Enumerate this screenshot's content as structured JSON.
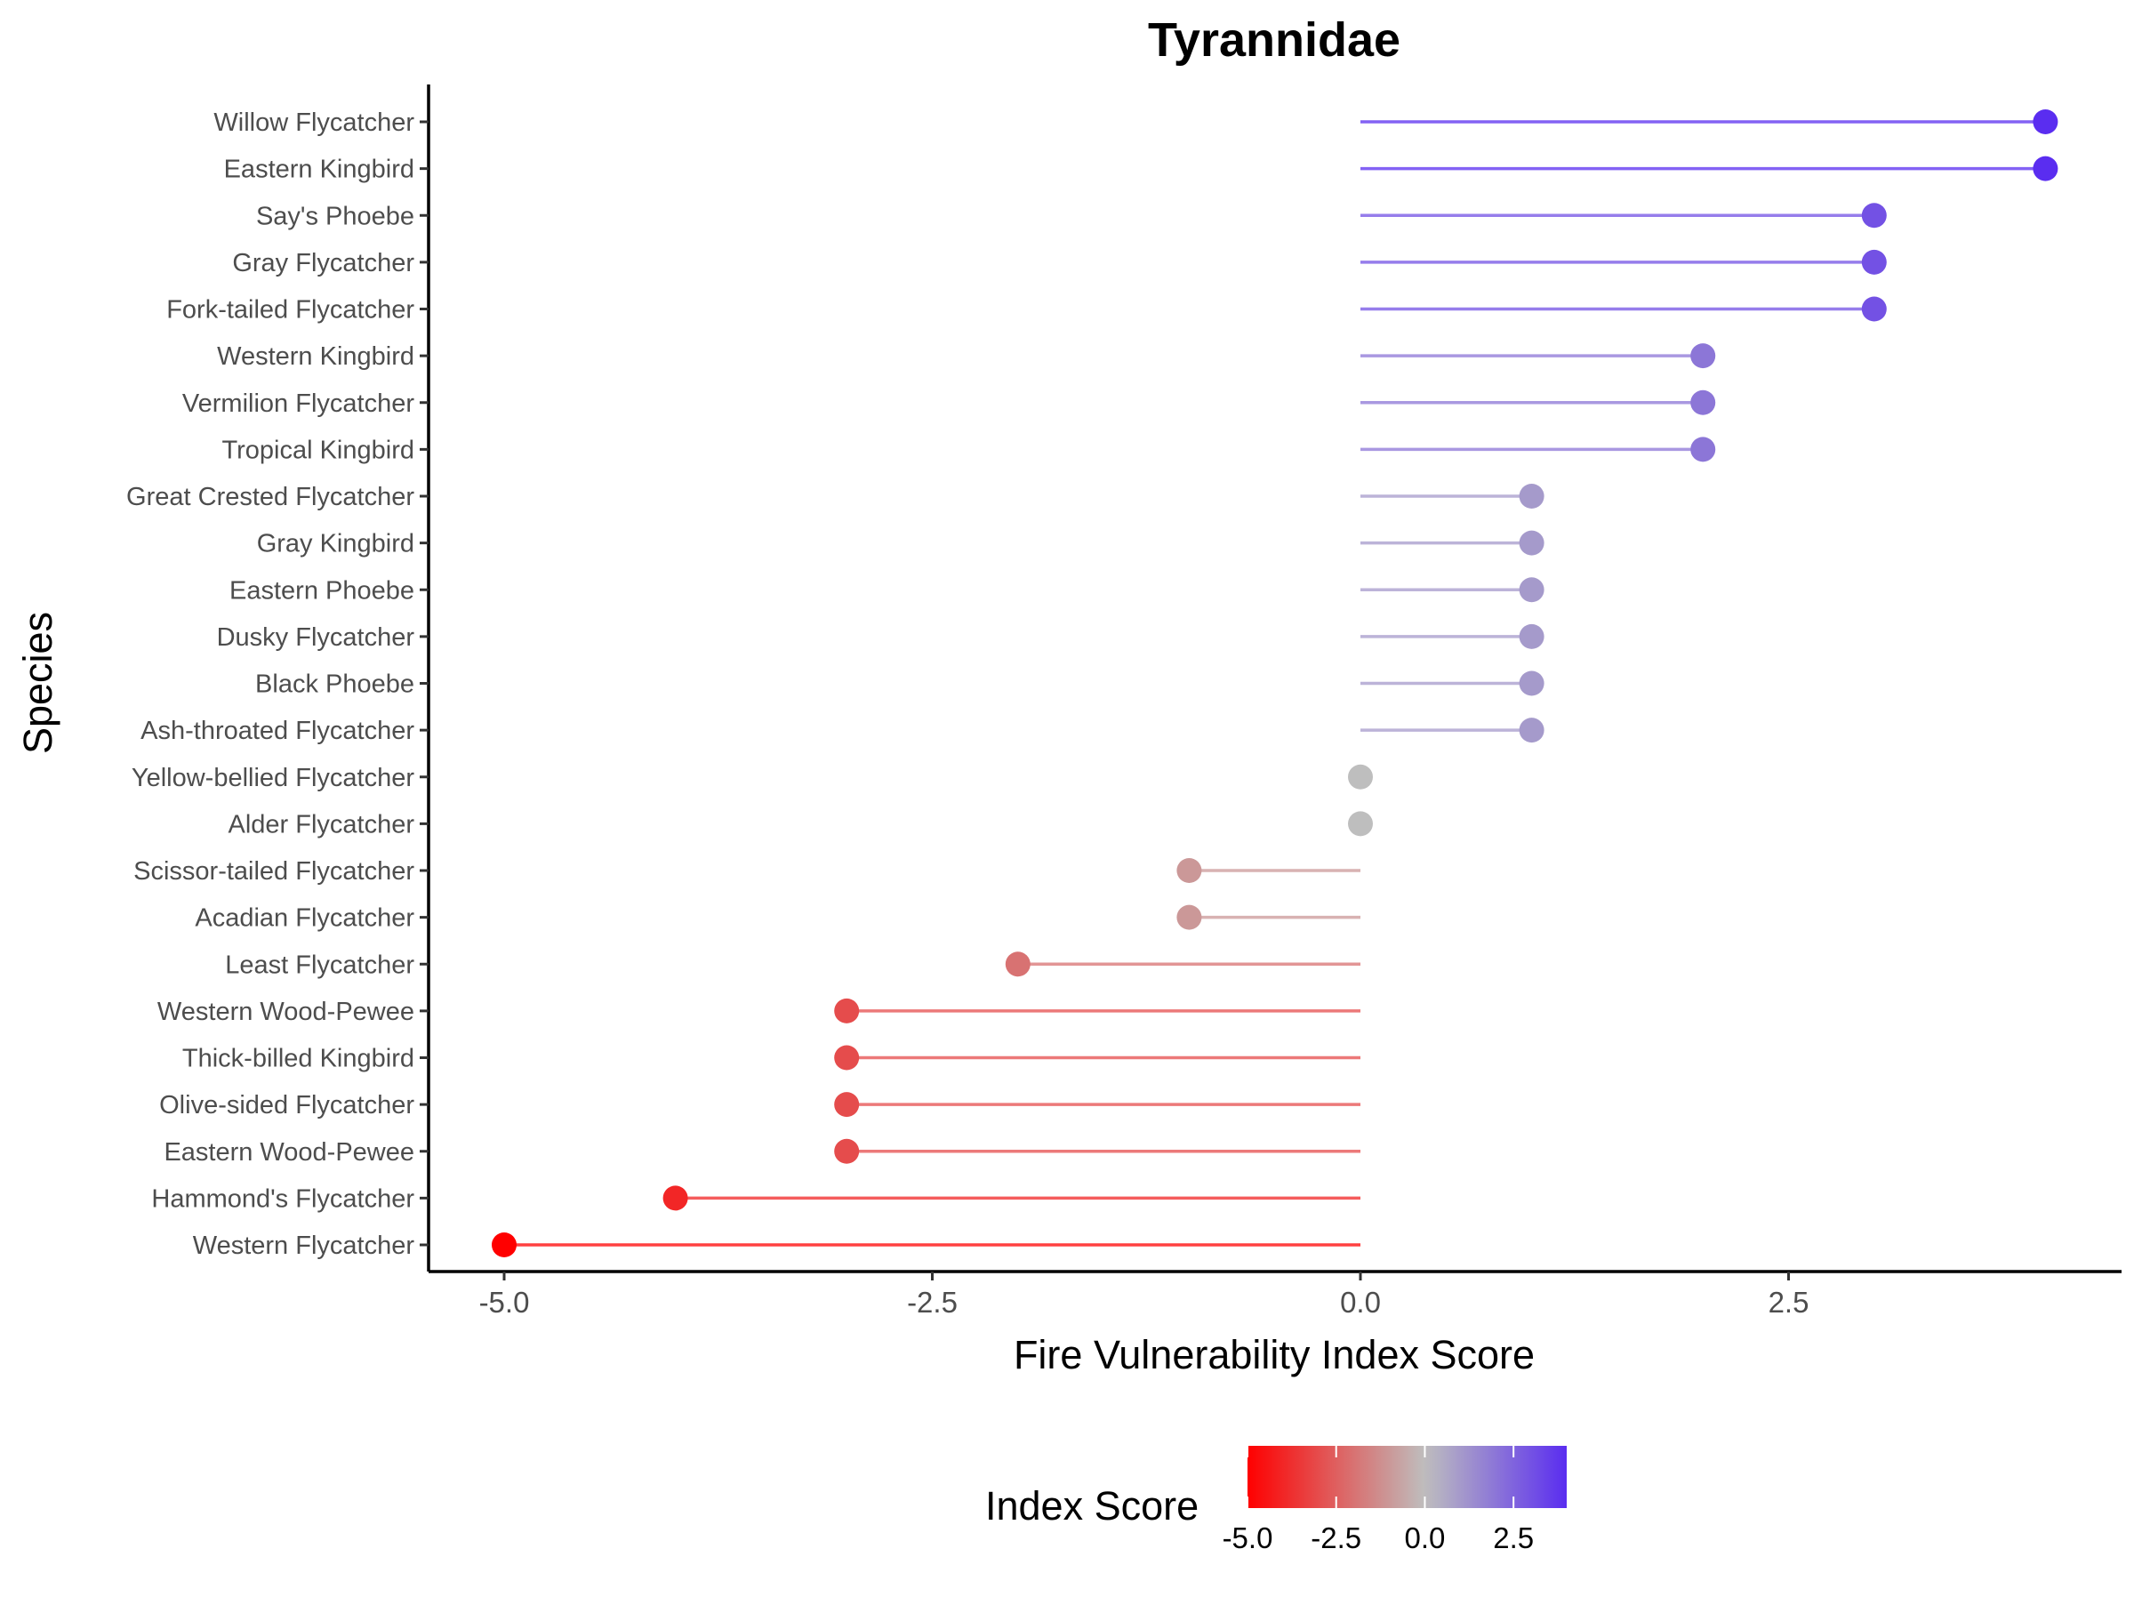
{
  "chart_data": {
    "type": "lollipop",
    "title": "Tyrannidae",
    "xlabel": "Fire Vulnerability Index Score",
    "ylabel": "Species",
    "xlim": [
      -5.35,
      4.5
    ],
    "x_ticks": [
      -5.0,
      -2.5,
      0.0,
      2.5
    ],
    "x_tick_labels": [
      "-5.0",
      "-2.5",
      "0.0",
      "2.5"
    ],
    "grid": false,
    "baseline": 0,
    "categories": [
      "Willow Flycatcher",
      "Eastern Kingbird",
      "Say's Phoebe",
      "Gray Flycatcher",
      "Fork-tailed Flycatcher",
      "Western Kingbird",
      "Vermilion Flycatcher",
      "Tropical Kingbird",
      "Great Crested Flycatcher",
      "Gray Kingbird",
      "Eastern Phoebe",
      "Dusky Flycatcher",
      "Black Phoebe",
      "Ash-throated Flycatcher",
      "Yellow-bellied Flycatcher",
      "Alder Flycatcher",
      "Scissor-tailed Flycatcher",
      "Acadian Flycatcher",
      "Least Flycatcher",
      "Western Wood-Pewee",
      "Thick-billed Kingbird",
      "Olive-sided Flycatcher",
      "Eastern Wood-Pewee",
      "Hammond's Flycatcher",
      "Western Flycatcher"
    ],
    "values": [
      4,
      4,
      3,
      3,
      3,
      2,
      2,
      2,
      1,
      1,
      1,
      1,
      1,
      1,
      0,
      0,
      -1,
      -1,
      -2,
      -3,
      -3,
      -3,
      -3,
      -4,
      -5
    ],
    "color_scale": {
      "title": "Index Score",
      "domain": [
        -5,
        4
      ],
      "low": "#ff0000",
      "mid": "#bebebe",
      "high": "#5a2df0",
      "midpoint": 0,
      "ticks": [
        -5.0,
        -2.5,
        0.0,
        2.5
      ],
      "tick_labels": [
        "-5.0",
        "-2.5",
        "0.0",
        "2.5"
      ],
      "position": "bottom"
    }
  }
}
